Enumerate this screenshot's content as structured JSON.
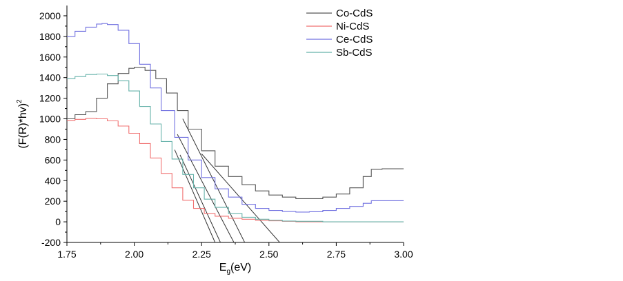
{
  "chart_data": {
    "type": "line",
    "title": "",
    "xlabel": "E",
    "xlabel_sub": "g",
    "xlabel_suffix": "(eV)",
    "ylabel": "(F(R)*hv)",
    "ylabel_sup": "2",
    "xlim": [
      1.75,
      3.0
    ],
    "ylim": [
      -200,
      2100
    ],
    "xticks": [
      1.75,
      2.0,
      2.25,
      2.5,
      2.75,
      3.0
    ],
    "xtick_labels": [
      "1.75",
      "2.00",
      "2.25",
      "2.50",
      "2.75",
      "3.00"
    ],
    "yticks": [
      -200,
      0,
      200,
      400,
      600,
      800,
      1000,
      1200,
      1400,
      1600,
      1800,
      2000
    ],
    "ytick_labels": [
      "-200",
      "0",
      "200",
      "400",
      "600",
      "800",
      "1000",
      "1200",
      "1400",
      "1600",
      "1800",
      "2000"
    ],
    "grid": false,
    "legend_position": "top-right",
    "series": [
      {
        "name": "Co-CdS",
        "color": "#555555",
        "x": [
          1.75,
          1.78,
          1.82,
          1.86,
          1.9,
          1.94,
          1.98,
          2.0,
          2.04,
          2.08,
          2.12,
          2.16,
          2.2,
          2.25,
          2.3,
          2.35,
          2.4,
          2.45,
          2.5,
          2.55,
          2.6,
          2.65,
          2.7,
          2.75,
          2.8,
          2.85,
          2.88,
          2.92,
          2.96,
          3.0
        ],
        "y": [
          1000,
          1040,
          1070,
          1200,
          1340,
          1440,
          1490,
          1500,
          1470,
          1390,
          1250,
          1080,
          900,
          690,
          540,
          440,
          360,
          300,
          260,
          240,
          225,
          225,
          240,
          270,
          330,
          440,
          510,
          515,
          515,
          515
        ]
      },
      {
        "name": "Ni-CdS",
        "color": "#f07070",
        "x": [
          1.75,
          1.78,
          1.82,
          1.86,
          1.9,
          1.94,
          1.98,
          2.02,
          2.06,
          2.1,
          2.14,
          2.18,
          2.22,
          2.26,
          2.3,
          2.35,
          2.4,
          2.45,
          2.5,
          2.55,
          2.6,
          2.7,
          2.8,
          2.9,
          3.0
        ],
        "y": [
          985,
          995,
          1005,
          1000,
          980,
          930,
          860,
          760,
          620,
          470,
          330,
          210,
          130,
          80,
          55,
          35,
          25,
          15,
          10,
          5,
          0,
          0,
          0,
          0,
          0
        ]
      },
      {
        "name": "Ce-CdS",
        "color": "#7070e0",
        "x": [
          1.75,
          1.78,
          1.82,
          1.86,
          1.88,
          1.9,
          1.94,
          1.98,
          2.02,
          2.06,
          2.1,
          2.15,
          2.2,
          2.25,
          2.3,
          2.35,
          2.4,
          2.45,
          2.5,
          2.55,
          2.6,
          2.65,
          2.7,
          2.75,
          2.8,
          2.85,
          2.88,
          2.92,
          2.96,
          3.0
        ],
        "y": [
          1800,
          1850,
          1890,
          1920,
          1925,
          1915,
          1860,
          1730,
          1530,
          1300,
          1080,
          820,
          600,
          430,
          320,
          240,
          170,
          130,
          110,
          100,
          95,
          98,
          110,
          130,
          150,
          180,
          205,
          205,
          205,
          205
        ]
      },
      {
        "name": "Sb-CdS",
        "color": "#66b2aa",
        "x": [
          1.75,
          1.78,
          1.82,
          1.86,
          1.9,
          1.94,
          1.98,
          2.02,
          2.06,
          2.1,
          2.14,
          2.18,
          2.22,
          2.26,
          2.3,
          2.35,
          2.4,
          2.45,
          2.5,
          2.55,
          2.6,
          2.7,
          2.8,
          2.9,
          3.0
        ],
        "y": [
          1390,
          1410,
          1430,
          1435,
          1420,
          1370,
          1270,
          1120,
          950,
          780,
          610,
          460,
          330,
          220,
          140,
          80,
          45,
          25,
          15,
          8,
          5,
          0,
          0,
          0,
          0
        ]
      }
    ],
    "tangent_lines": [
      {
        "color": "#333333",
        "x": [
          2.15,
          2.3
        ],
        "y": [
          700,
          -200
        ]
      },
      {
        "color": "#333333",
        "x": [
          2.17,
          2.32
        ],
        "y": [
          650,
          -200
        ]
      },
      {
        "color": "#333333",
        "x": [
          2.16,
          2.37
        ],
        "y": [
          850,
          -200
        ]
      },
      {
        "color": "#333333",
        "x": [
          2.18,
          2.41
        ],
        "y": [
          1000,
          -200
        ]
      },
      {
        "color": "#333333",
        "x": [
          2.25,
          2.54
        ],
        "y": [
          660,
          -200
        ]
      }
    ]
  }
}
